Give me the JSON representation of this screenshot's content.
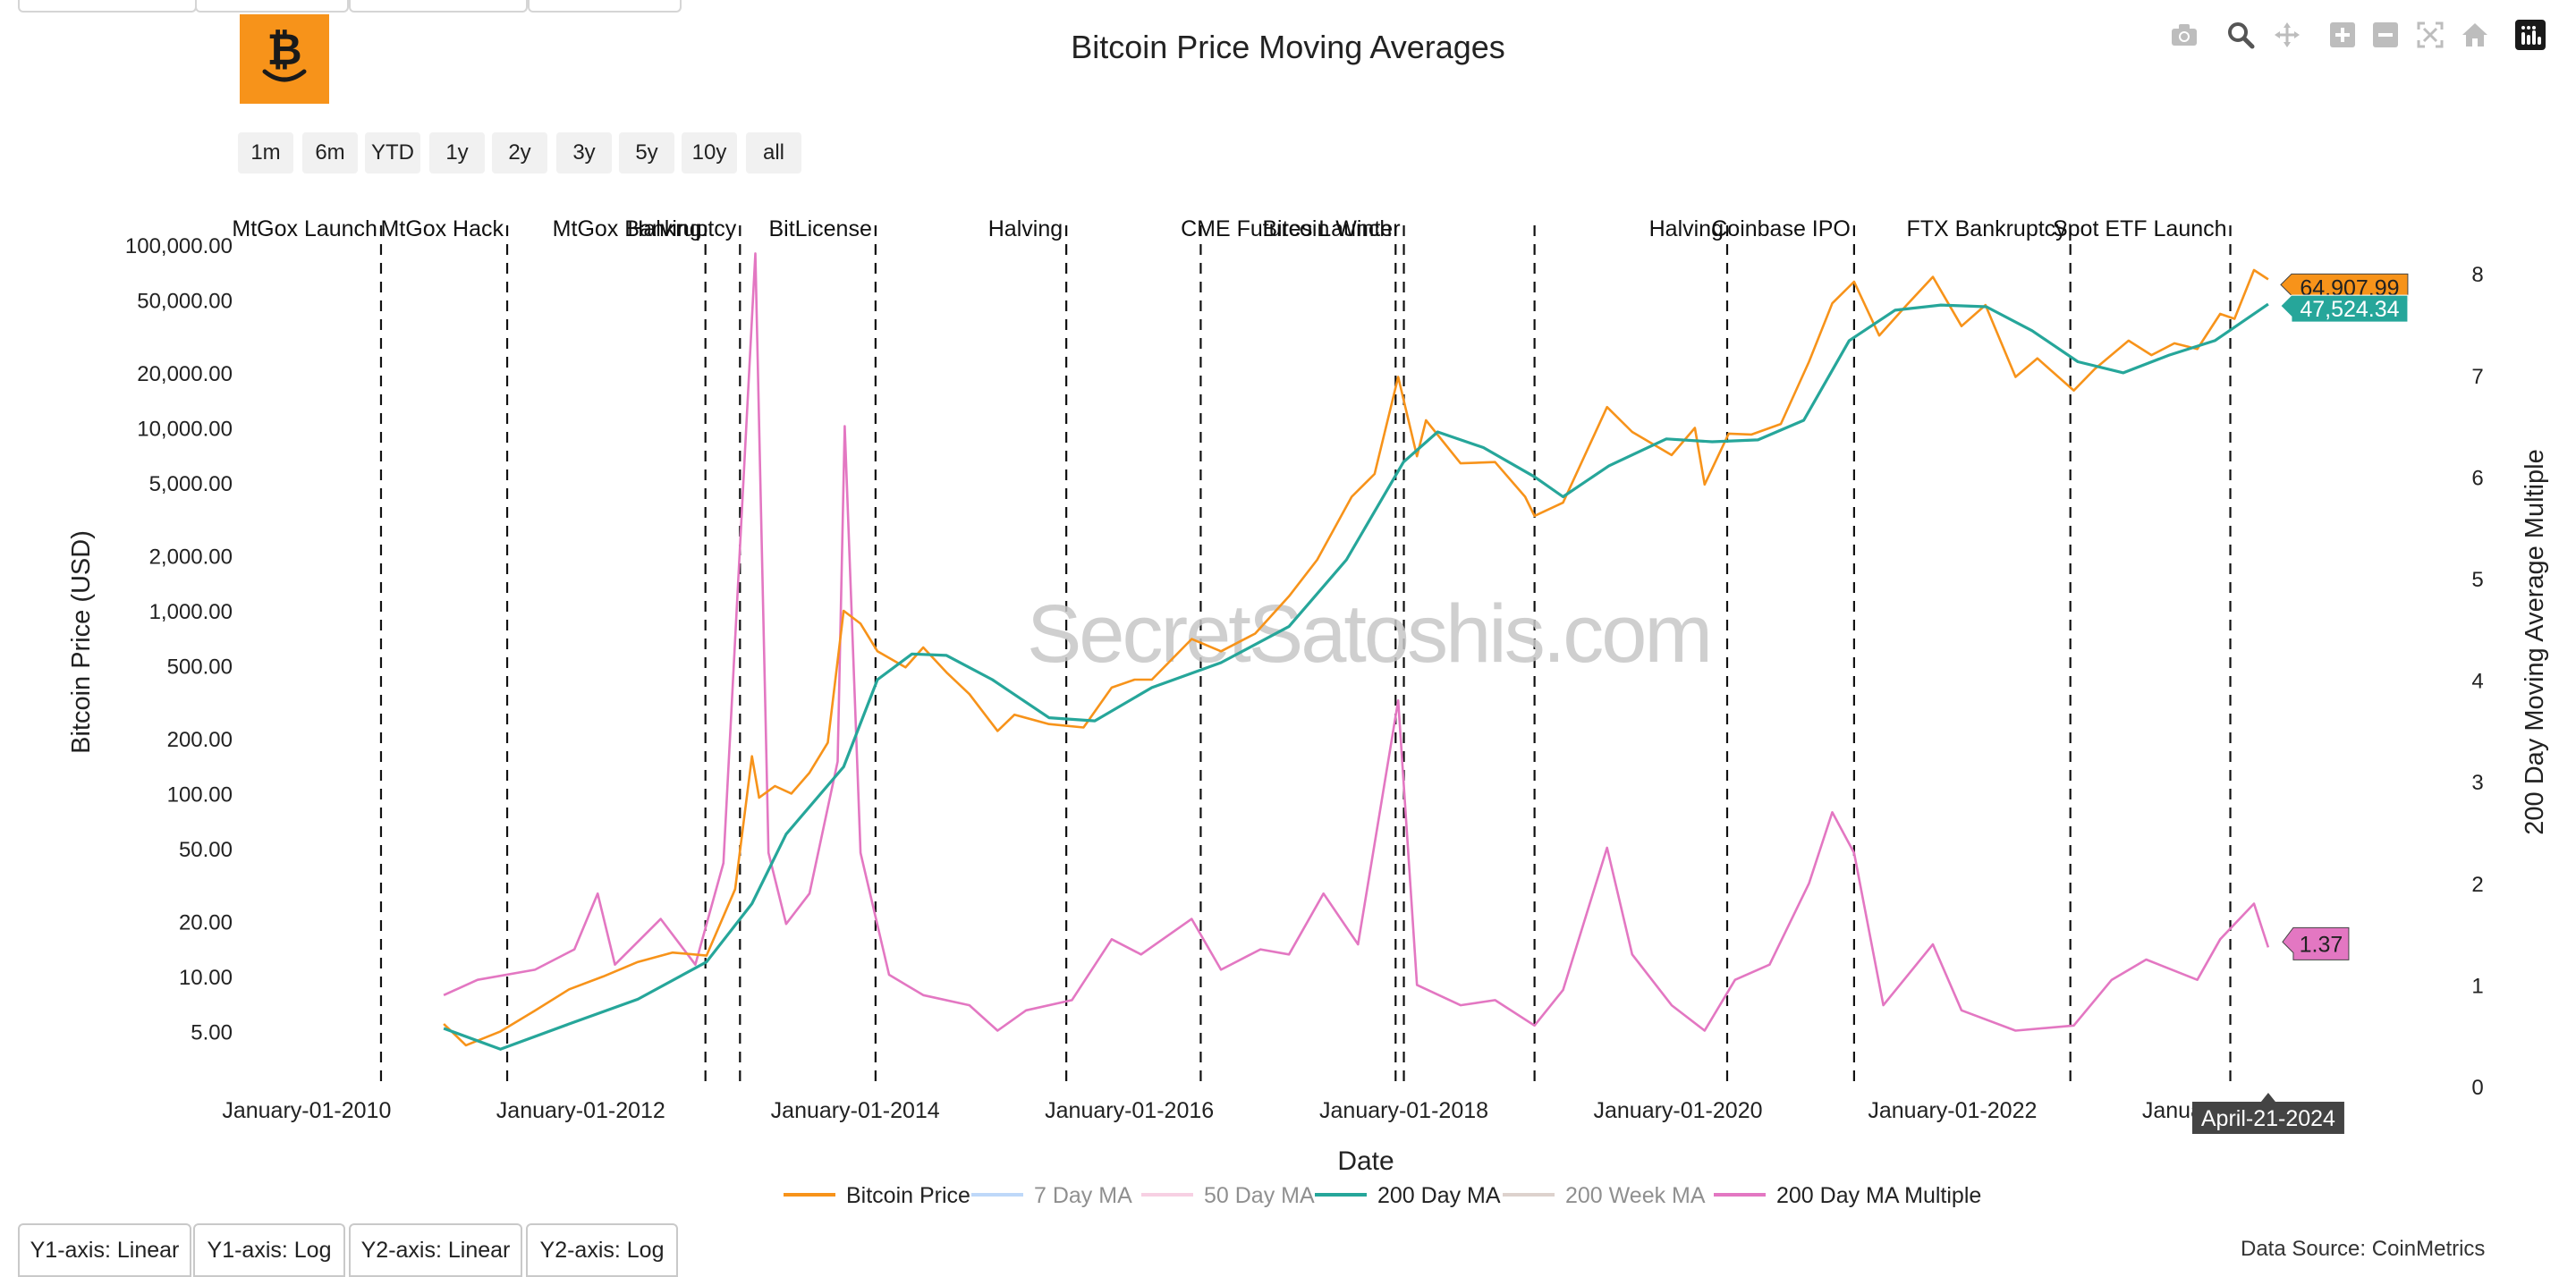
{
  "title": "Bitcoin Price Moving Averages",
  "range_buttons": [
    "1m",
    "6m",
    "YTD",
    "1y",
    "2y",
    "3y",
    "5y",
    "10y",
    "all"
  ],
  "axis_buttons": [
    "Y1-axis: Linear",
    "Y1-axis: Log",
    "Y2-axis: Linear",
    "Y2-axis: Log"
  ],
  "data_source": "Data Source: CoinMetrics",
  "watermark": "SecretSatoshis.com",
  "hover_date": "April-21-2024",
  "toolbar_icons": [
    "camera-icon",
    "zoom-icon",
    "pan-icon",
    "zoom-in-icon",
    "zoom-out-icon",
    "autoscale-icon",
    "home-icon",
    "plotly-logo-icon"
  ],
  "colors": {
    "bitcoin_price": "#f7931a",
    "ma7": "#7fb3f5",
    "ma50": "#f0a3c8",
    "ma200": "#26a69a",
    "ma200w": "#bca79c",
    "multiple": "#e377c2"
  },
  "chart_data": {
    "type": "line",
    "title": "Bitcoin Price Moving Averages",
    "xlabel": "Date",
    "ylabel": "Bitcoin Price (USD)",
    "y2label": "200 Day Moving Average Multiple",
    "y_scale": "log",
    "ylim": [
      2.5,
      150000
    ],
    "y2lim": [
      0,
      8.6
    ],
    "xlim": [
      "2009-05-01",
      "2025-09-01"
    ],
    "x_ticks": [
      "January-01-2010",
      "January-01-2012",
      "January-01-2014",
      "January-01-2016",
      "January-01-2018",
      "January-01-2020",
      "January-01-2022",
      "January-01-2024"
    ],
    "y_ticks": [
      "5.00",
      "10.00",
      "20.00",
      "50.00",
      "100.00",
      "200.00",
      "500.00",
      "1,000.00",
      "2,000.00",
      "5,000.00",
      "10,000.00",
      "20,000.00",
      "50,000.00",
      "100,000.00"
    ],
    "y2_ticks": [
      "0",
      "1",
      "2",
      "3",
      "4",
      "5",
      "6",
      "7",
      "8"
    ],
    "legend": {
      "position": "bottom"
    },
    "events": [
      {
        "date": "2010-07-18",
        "label": "MtGox Launch"
      },
      {
        "date": "2011-06-19",
        "label": "MtGox Hack"
      },
      {
        "date": "2012-11-28",
        "label": "Halving"
      },
      {
        "date": "2013-02-28",
        "label": "MtGox Bankruptcy"
      },
      {
        "date": "2014-02-24",
        "label": "BitLicense"
      },
      {
        "date": "2015-07-17",
        "label": "Halving"
      },
      {
        "date": "2016-07-09",
        "label": ""
      },
      {
        "date": "2017-12-10",
        "label": "CME Futures Launch"
      },
      {
        "date": "2018-01-01",
        "label": "Bitcoin Winter"
      },
      {
        "date": "2018-12-15",
        "label": ""
      },
      {
        "date": "2020-05-11",
        "label": "Halving"
      },
      {
        "date": "2021-04-14",
        "label": "Coinbase IPO"
      },
      {
        "date": "2022-11-11",
        "label": "FTX Bankruptcy"
      },
      {
        "date": "2024-01-11",
        "label": "Spot ETF Launch"
      }
    ],
    "series": [
      {
        "name": "Bitcoin Price",
        "visible": true,
        "last_value": "64,907.99",
        "points": [
          [
            "2011-01-01",
            5.5
          ],
          [
            "2011-03-01",
            4.2
          ],
          [
            "2011-06-01",
            5.0
          ],
          [
            "2011-09-01",
            6.5
          ],
          [
            "2011-12-01",
            8.5
          ],
          [
            "2012-03-01",
            10.0
          ],
          [
            "2012-06-01",
            12.0
          ],
          [
            "2012-09-01",
            13.5
          ],
          [
            "2012-12-01",
            13.0
          ],
          [
            "2013-02-15",
            30
          ],
          [
            "2013-04-01",
            160
          ],
          [
            "2013-04-20",
            95
          ],
          [
            "2013-06-01",
            110
          ],
          [
            "2013-07-15",
            100
          ],
          [
            "2013-09-01",
            130
          ],
          [
            "2013-10-20",
            190
          ],
          [
            "2013-12-01",
            1000
          ],
          [
            "2014-01-15",
            850
          ],
          [
            "2014-03-01",
            600
          ],
          [
            "2014-05-15",
            490
          ],
          [
            "2014-07-01",
            630
          ],
          [
            "2014-09-01",
            460
          ],
          [
            "2014-11-01",
            350
          ],
          [
            "2015-01-15",
            220
          ],
          [
            "2015-03-01",
            270
          ],
          [
            "2015-06-01",
            240
          ],
          [
            "2015-09-01",
            230
          ],
          [
            "2015-11-15",
            380
          ],
          [
            "2016-01-15",
            420
          ],
          [
            "2016-03-01",
            420
          ],
          [
            "2016-06-15",
            700
          ],
          [
            "2016-09-01",
            600
          ],
          [
            "2016-12-01",
            750
          ],
          [
            "2017-03-01",
            1200
          ],
          [
            "2017-05-15",
            1900
          ],
          [
            "2017-08-15",
            4200
          ],
          [
            "2017-10-15",
            5600
          ],
          [
            "2017-12-17",
            19000
          ],
          [
            "2018-02-05",
            7000
          ],
          [
            "2018-03-01",
            11000
          ],
          [
            "2018-06-01",
            6400
          ],
          [
            "2018-09-01",
            6500
          ],
          [
            "2018-11-20",
            4200
          ],
          [
            "2018-12-15",
            3300
          ],
          [
            "2019-03-01",
            3900
          ],
          [
            "2019-06-26",
            13000
          ],
          [
            "2019-09-01",
            9500
          ],
          [
            "2019-12-15",
            7100
          ],
          [
            "2020-02-15",
            10000
          ],
          [
            "2020-03-12",
            4900
          ],
          [
            "2020-05-15",
            9300
          ],
          [
            "2020-07-15",
            9200
          ],
          [
            "2020-10-01",
            10500
          ],
          [
            "2020-12-15",
            23000
          ],
          [
            "2021-02-15",
            48000
          ],
          [
            "2021-04-14",
            63000
          ],
          [
            "2021-06-20",
            32000
          ],
          [
            "2021-09-01",
            47000
          ],
          [
            "2021-11-10",
            67000
          ],
          [
            "2022-01-25",
            36000
          ],
          [
            "2022-03-30",
            47000
          ],
          [
            "2022-06-18",
            19000
          ],
          [
            "2022-08-15",
            24000
          ],
          [
            "2022-11-20",
            16000
          ],
          [
            "2023-01-15",
            21000
          ],
          [
            "2023-04-15",
            30000
          ],
          [
            "2023-06-15",
            25000
          ],
          [
            "2023-08-15",
            29000
          ],
          [
            "2023-10-15",
            27000
          ],
          [
            "2023-12-15",
            42000
          ],
          [
            "2024-01-22",
            39500
          ],
          [
            "2024-03-14",
            73000
          ],
          [
            "2024-04-21",
            64907.99
          ]
        ]
      },
      {
        "name": "7 Day MA",
        "visible": false,
        "points": []
      },
      {
        "name": "50 Day MA",
        "visible": false,
        "points": []
      },
      {
        "name": "200 Day MA",
        "visible": true,
        "last_value": "47,524.34",
        "points": [
          [
            "2011-01-01",
            5.2
          ],
          [
            "2011-06-01",
            4.0
          ],
          [
            "2011-12-01",
            5.5
          ],
          [
            "2012-06-01",
            7.5
          ],
          [
            "2012-12-01",
            12.0
          ],
          [
            "2013-04-01",
            25
          ],
          [
            "2013-07-01",
            60
          ],
          [
            "2013-12-01",
            140
          ],
          [
            "2014-03-01",
            420
          ],
          [
            "2014-06-01",
            580
          ],
          [
            "2014-09-01",
            570
          ],
          [
            "2015-01-01",
            420
          ],
          [
            "2015-06-01",
            260
          ],
          [
            "2015-10-01",
            250
          ],
          [
            "2016-03-01",
            380
          ],
          [
            "2016-09-01",
            520
          ],
          [
            "2017-03-01",
            820
          ],
          [
            "2017-08-01",
            1900
          ],
          [
            "2017-12-31",
            6500
          ],
          [
            "2018-04-01",
            9500
          ],
          [
            "2018-08-01",
            7800
          ],
          [
            "2018-12-15",
            5400
          ],
          [
            "2019-03-01",
            4200
          ],
          [
            "2019-07-01",
            6200
          ],
          [
            "2019-12-01",
            8700
          ],
          [
            "2020-04-01",
            8400
          ],
          [
            "2020-08-01",
            8600
          ],
          [
            "2020-12-01",
            11000
          ],
          [
            "2021-04-01",
            30000
          ],
          [
            "2021-08-01",
            44000
          ],
          [
            "2021-12-01",
            47000
          ],
          [
            "2022-04-01",
            46000
          ],
          [
            "2022-08-01",
            34000
          ],
          [
            "2022-12-01",
            23000
          ],
          [
            "2023-04-01",
            20000
          ],
          [
            "2023-08-01",
            25000
          ],
          [
            "2023-12-01",
            30000
          ],
          [
            "2024-04-21",
            47524.34
          ]
        ]
      },
      {
        "name": "200 Week MA",
        "visible": false,
        "points": []
      },
      {
        "name": "200 Day MA Multiple",
        "visible": true,
        "axis": "y2",
        "last_value": "1.37",
        "points": [
          [
            "2011-01-01",
            0.9
          ],
          [
            "2011-04-01",
            1.05
          ],
          [
            "2011-09-01",
            1.15
          ],
          [
            "2011-12-15",
            1.35
          ],
          [
            "2012-02-15",
            1.9
          ],
          [
            "2012-04-01",
            1.2
          ],
          [
            "2012-08-01",
            1.65
          ],
          [
            "2012-11-01",
            1.2
          ],
          [
            "2013-01-15",
            2.2
          ],
          [
            "2013-04-10",
            8.2
          ],
          [
            "2013-05-15",
            2.3
          ],
          [
            "2013-07-01",
            1.6
          ],
          [
            "2013-09-01",
            1.9
          ],
          [
            "2013-11-15",
            3.2
          ],
          [
            "2013-12-04",
            6.5
          ],
          [
            "2014-01-15",
            2.3
          ],
          [
            "2014-04-01",
            1.1
          ],
          [
            "2014-07-01",
            0.9
          ],
          [
            "2014-11-01",
            0.8
          ],
          [
            "2015-01-15",
            0.55
          ],
          [
            "2015-04-01",
            0.75
          ],
          [
            "2015-08-01",
            0.85
          ],
          [
            "2015-11-15",
            1.45
          ],
          [
            "2016-02-01",
            1.3
          ],
          [
            "2016-06-15",
            1.65
          ],
          [
            "2016-09-01",
            1.15
          ],
          [
            "2016-12-15",
            1.35
          ],
          [
            "2017-03-01",
            1.3
          ],
          [
            "2017-06-01",
            1.9
          ],
          [
            "2017-09-01",
            1.4
          ],
          [
            "2017-12-17",
            3.8
          ],
          [
            "2018-02-05",
            1.0
          ],
          [
            "2018-06-01",
            0.8
          ],
          [
            "2018-09-01",
            0.85
          ],
          [
            "2018-12-15",
            0.6
          ],
          [
            "2019-03-01",
            0.95
          ],
          [
            "2019-06-26",
            2.35
          ],
          [
            "2019-09-01",
            1.3
          ],
          [
            "2019-12-15",
            0.8
          ],
          [
            "2020-03-12",
            0.55
          ],
          [
            "2020-06-01",
            1.05
          ],
          [
            "2020-09-01",
            1.2
          ],
          [
            "2020-12-15",
            2.0
          ],
          [
            "2021-02-15",
            2.7
          ],
          [
            "2021-04-14",
            2.3
          ],
          [
            "2021-07-01",
            0.8
          ],
          [
            "2021-11-10",
            1.4
          ],
          [
            "2022-01-25",
            0.75
          ],
          [
            "2022-06-18",
            0.55
          ],
          [
            "2022-11-20",
            0.6
          ],
          [
            "2023-03-01",
            1.05
          ],
          [
            "2023-06-01",
            1.25
          ],
          [
            "2023-10-15",
            1.05
          ],
          [
            "2023-12-15",
            1.45
          ],
          [
            "2024-03-14",
            1.8
          ],
          [
            "2024-04-21",
            1.37
          ]
        ]
      }
    ]
  }
}
